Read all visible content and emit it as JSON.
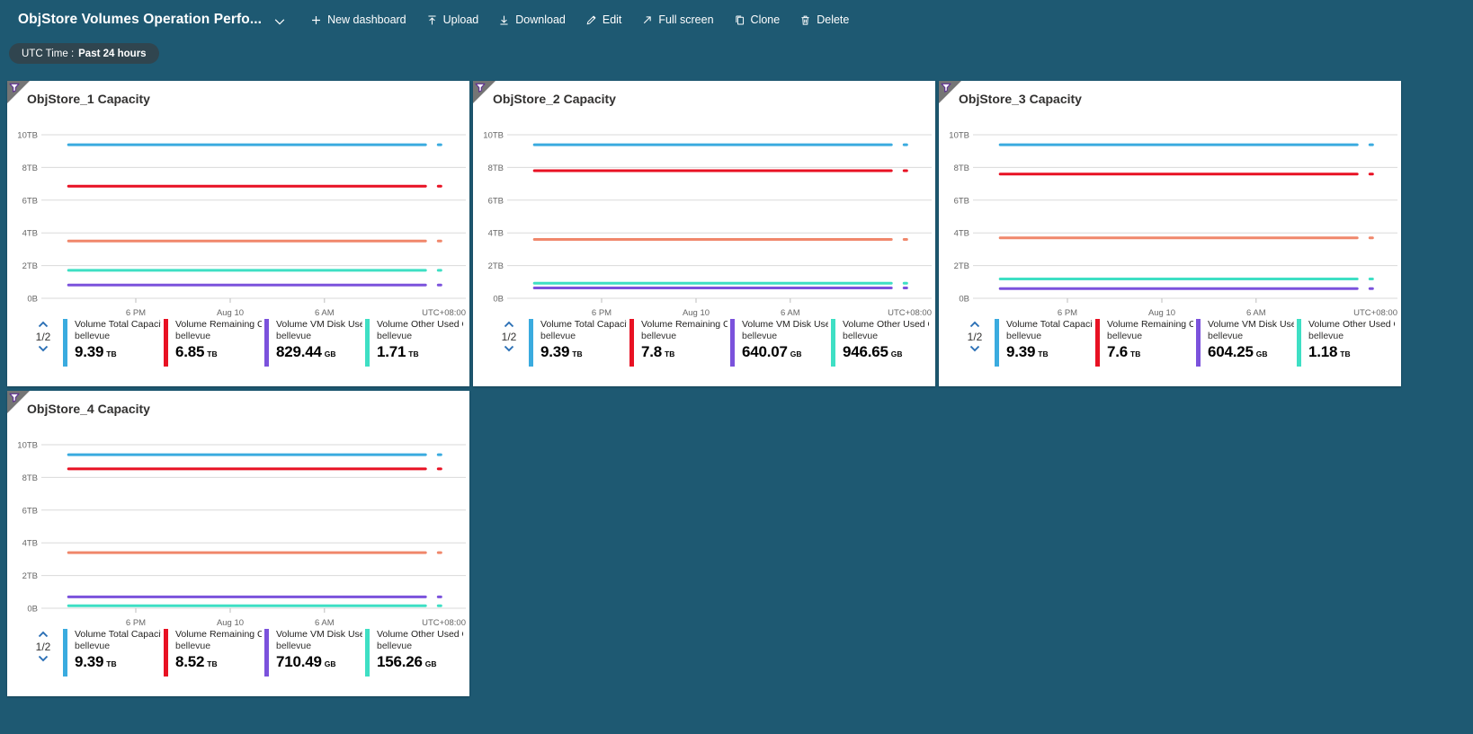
{
  "header": {
    "title": "ObjStore Volumes Operation Perfo...",
    "toolbar": [
      {
        "label": "New dashboard",
        "icon": "plus"
      },
      {
        "label": "Upload",
        "icon": "upload"
      },
      {
        "label": "Download",
        "icon": "download"
      },
      {
        "label": "Edit",
        "icon": "edit"
      },
      {
        "label": "Full screen",
        "icon": "full-screen"
      },
      {
        "label": "Clone",
        "icon": "clone"
      },
      {
        "label": "Delete",
        "icon": "delete"
      }
    ]
  },
  "time_filter": {
    "label": "UTC Time :",
    "value": "Past 24 hours"
  },
  "colors": {
    "background": "#1e5972",
    "series_blue": "#3aabdf",
    "series_red": "#e81123",
    "series_orange": "#f0876b",
    "series_teal": "#3edfc4",
    "series_purple": "#7b52dc",
    "pager_arrow": "#2a6fb5",
    "funnel_outline": "#5c2d91"
  },
  "chart_defaults": {
    "y_ticks": [
      "10TB",
      "8TB",
      "6TB",
      "4TB",
      "2TB",
      "0B"
    ],
    "y_tick_values": [
      10,
      8,
      6,
      4,
      2,
      0
    ],
    "x_ticks": [
      "6 PM",
      "Aug 10",
      "6 AM"
    ],
    "x_right_label": "UTC+08:00",
    "time_range": "Past 24 hours"
  },
  "tiles": [
    {
      "title": "ObjStore_1 Capacity",
      "pagination": "1/2",
      "legend": [
        {
          "name": "Volume Total Capacit...",
          "resource": "bellevue",
          "value": "9.39",
          "unit": "TB",
          "color_key": "series_blue"
        },
        {
          "name": "Volume Remaining Cap...",
          "resource": "bellevue",
          "value": "6.85",
          "unit": "TB",
          "color_key": "series_red"
        },
        {
          "name": "Volume VM Disk Used ...",
          "resource": "bellevue",
          "value": "829.44",
          "unit": "GB",
          "color_key": "series_purple"
        },
        {
          "name": "Volume Other Used Ca...",
          "resource": "bellevue",
          "value": "1.71",
          "unit": "TB",
          "color_key": "series_teal"
        }
      ],
      "chart_data": {
        "type": "line",
        "series": [
          {
            "name": "Volume Total Capacit... (bellevue)",
            "color_key": "series_blue",
            "value_tb": 9.39
          },
          {
            "name": "Volume Remaining Cap... (bellevue)",
            "color_key": "series_red",
            "value_tb": 6.85
          },
          {
            "name": "unlabeled (legend page 2)",
            "color_key": "series_orange",
            "value_tb": 3.5
          },
          {
            "name": "Volume Other Used Ca... (bellevue)",
            "color_key": "series_teal",
            "value_tb": 1.71
          },
          {
            "name": "Volume VM Disk Used ... (bellevue)",
            "color_key": "series_purple",
            "value_tb": 0.81
          }
        ]
      }
    },
    {
      "title": "ObjStore_2 Capacity",
      "pagination": "1/2",
      "legend": [
        {
          "name": "Volume Total Capacit...",
          "resource": "bellevue",
          "value": "9.39",
          "unit": "TB",
          "color_key": "series_blue"
        },
        {
          "name": "Volume Remaining Cap...",
          "resource": "bellevue",
          "value": "7.8",
          "unit": "TB",
          "color_key": "series_red"
        },
        {
          "name": "Volume VM Disk Used ...",
          "resource": "bellevue",
          "value": "640.07",
          "unit": "GB",
          "color_key": "series_purple"
        },
        {
          "name": "Volume Other Used Ca...",
          "resource": "bellevue",
          "value": "946.65",
          "unit": "GB",
          "color_key": "series_teal"
        }
      ],
      "chart_data": {
        "type": "line",
        "series": [
          {
            "name": "Volume Total Capacit... (bellevue)",
            "color_key": "series_blue",
            "value_tb": 9.39
          },
          {
            "name": "Volume Remaining Cap... (bellevue)",
            "color_key": "series_red",
            "value_tb": 7.8
          },
          {
            "name": "unlabeled (legend page 2)",
            "color_key": "series_orange",
            "value_tb": 3.6
          },
          {
            "name": "Volume Other Used Ca... (bellevue)",
            "color_key": "series_teal",
            "value_tb": 0.92
          },
          {
            "name": "Volume VM Disk Used ... (bellevue)",
            "color_key": "series_purple",
            "value_tb": 0.63
          }
        ]
      }
    },
    {
      "title": "ObjStore_3 Capacity",
      "pagination": "1/2",
      "legend": [
        {
          "name": "Volume Total Capacit...",
          "resource": "bellevue",
          "value": "9.39",
          "unit": "TB",
          "color_key": "series_blue"
        },
        {
          "name": "Volume Remaining Cap...",
          "resource": "bellevue",
          "value": "7.6",
          "unit": "TB",
          "color_key": "series_red"
        },
        {
          "name": "Volume VM Disk Used ...",
          "resource": "bellevue",
          "value": "604.25",
          "unit": "GB",
          "color_key": "series_purple"
        },
        {
          "name": "Volume Other Used Ca...",
          "resource": "bellevue",
          "value": "1.18",
          "unit": "TB",
          "color_key": "series_teal"
        }
      ],
      "chart_data": {
        "type": "line",
        "series": [
          {
            "name": "Volume Total Capacit... (bellevue)",
            "color_key": "series_blue",
            "value_tb": 9.39
          },
          {
            "name": "Volume Remaining Cap... (bellevue)",
            "color_key": "series_red",
            "value_tb": 7.6
          },
          {
            "name": "unlabeled (legend page 2)",
            "color_key": "series_orange",
            "value_tb": 3.7
          },
          {
            "name": "Volume Other Used Ca... (bellevue)",
            "color_key": "series_teal",
            "value_tb": 1.18
          },
          {
            "name": "Volume VM Disk Used ... (bellevue)",
            "color_key": "series_purple",
            "value_tb": 0.59
          }
        ]
      }
    },
    {
      "title": "ObjStore_4 Capacity",
      "pagination": "1/2",
      "legend": [
        {
          "name": "Volume Total Capacit...",
          "resource": "bellevue",
          "value": "9.39",
          "unit": "TB",
          "color_key": "series_blue"
        },
        {
          "name": "Volume Remaining Cap...",
          "resource": "bellevue",
          "value": "8.52",
          "unit": "TB",
          "color_key": "series_red"
        },
        {
          "name": "Volume VM Disk Used ...",
          "resource": "bellevue",
          "value": "710.49",
          "unit": "GB",
          "color_key": "series_purple"
        },
        {
          "name": "Volume Other Used Ca...",
          "resource": "bellevue",
          "value": "156.26",
          "unit": "GB",
          "color_key": "series_teal"
        }
      ],
      "chart_data": {
        "type": "line",
        "series": [
          {
            "name": "Volume Total Capacit... (bellevue)",
            "color_key": "series_blue",
            "value_tb": 9.39
          },
          {
            "name": "Volume Remaining Cap... (bellevue)",
            "color_key": "series_red",
            "value_tb": 8.52
          },
          {
            "name": "unlabeled (legend page 2)",
            "color_key": "series_orange",
            "value_tb": 3.4
          },
          {
            "name": "Volume VM Disk Used ... (bellevue)",
            "color_key": "series_purple",
            "value_tb": 0.69
          },
          {
            "name": "Volume Other Used Ca... (bellevue)",
            "color_key": "series_teal",
            "value_tb": 0.15
          }
        ]
      }
    }
  ]
}
